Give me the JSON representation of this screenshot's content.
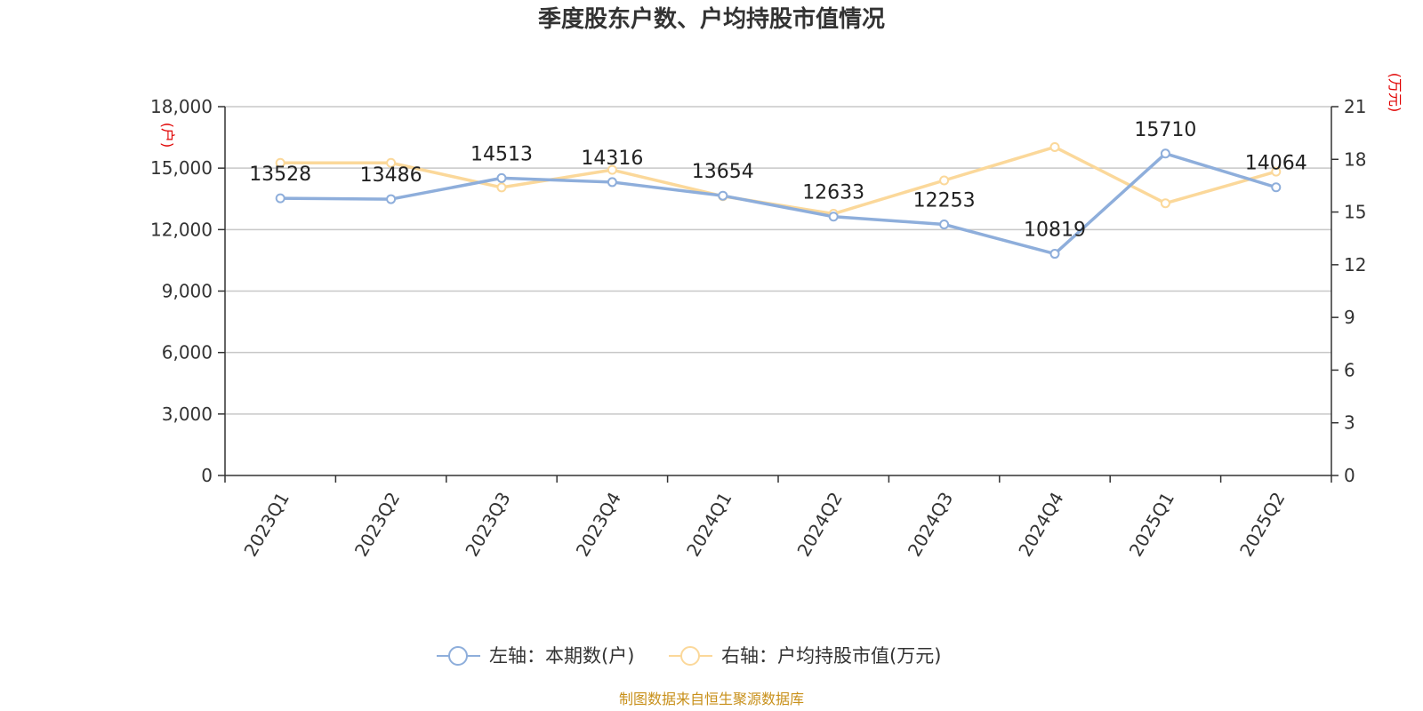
{
  "chart_data": {
    "type": "line",
    "title": "季度股东户数、户均持股市值情况",
    "categories": [
      "2023Q1",
      "2023Q2",
      "2023Q3",
      "2023Q4",
      "2024Q1",
      "2024Q2",
      "2024Q3",
      "2024Q4",
      "2025Q1",
      "2025Q2"
    ],
    "left_axis": {
      "unit": "(户)",
      "ylim": [
        0,
        18000
      ],
      "ticks": [
        "0",
        "3,000",
        "6,000",
        "9,000",
        "12,000",
        "15,000",
        "18,000"
      ]
    },
    "right_axis": {
      "unit": "(万元)",
      "ylim": [
        0,
        21
      ],
      "ticks": [
        "0",
        "3",
        "6",
        "9",
        "12",
        "15",
        "18",
        "21"
      ]
    },
    "series": [
      {
        "name": "左轴：本期数(户)",
        "axis": "left",
        "color": "#8eaedb",
        "values": [
          13528,
          13486,
          14513,
          14316,
          13654,
          12633,
          12253,
          10819,
          15710,
          14064
        ],
        "labels": [
          "13528",
          "13486",
          "14513",
          "14316",
          "13654",
          "12633",
          "12253",
          "10819",
          "15710",
          "14064"
        ]
      },
      {
        "name": "右轴：户均持股市值(万元)",
        "axis": "right",
        "color": "#fbd89a",
        "values": [
          17.8,
          17.8,
          16.4,
          17.4,
          15.9,
          14.9,
          16.8,
          18.7,
          15.5,
          17.3
        ]
      }
    ],
    "grid": true,
    "legend": "bottom-center"
  },
  "source": "制图数据来自恒生聚源数据库"
}
